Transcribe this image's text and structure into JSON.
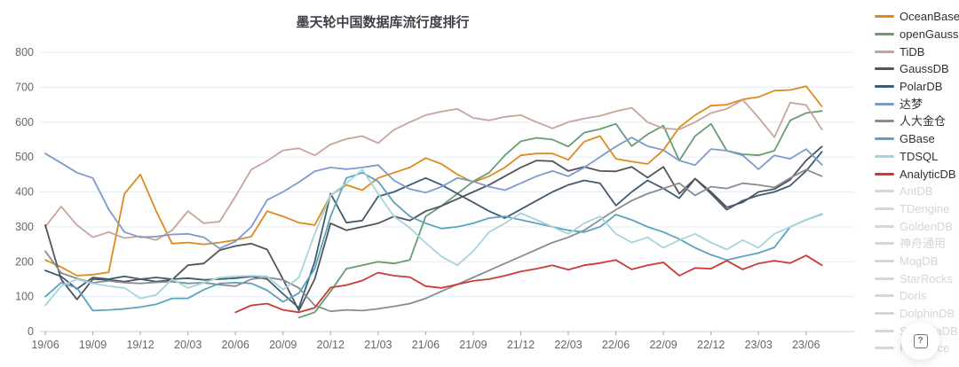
{
  "chart_data": {
    "type": "line",
    "title": "墨天轮中国数据库流行度排行",
    "xlabel": "",
    "ylabel": "",
    "ylim": [
      0,
      800
    ],
    "y_ticks": [
      0,
      100,
      200,
      300,
      400,
      500,
      600,
      700,
      800
    ],
    "grid": true,
    "legend_position": "right",
    "x": [
      "19/06",
      "19/07",
      "19/08",
      "19/09",
      "19/10",
      "19/11",
      "19/12",
      "20/01",
      "20/02",
      "20/03",
      "20/04",
      "20/05",
      "20/06",
      "20/07",
      "20/08",
      "20/09",
      "20/10",
      "20/11",
      "20/12",
      "21/01",
      "21/02",
      "21/03",
      "21/04",
      "21/05",
      "21/06",
      "21/07",
      "21/08",
      "21/09",
      "21/10",
      "21/11",
      "21/12",
      "22/01",
      "22/02",
      "22/03",
      "22/04",
      "22/05",
      "22/06",
      "22/07",
      "22/08",
      "22/09",
      "22/10",
      "22/11",
      "22/12",
      "23/01",
      "23/02",
      "23/03",
      "23/04",
      "23/05",
      "23/06",
      "23/07"
    ],
    "x_tick_labels": [
      "19/06",
      "19/09",
      "19/12",
      "20/03",
      "20/06",
      "20/09",
      "20/12",
      "21/03",
      "21/06",
      "21/09",
      "21/12",
      "22/03",
      "22/06",
      "22/09",
      "22/12",
      "23/03",
      "23/06"
    ],
    "series": [
      {
        "name": "OceanBase",
        "color": "#DE8A1D",
        "values": [
          205,
          185,
          160,
          163,
          170,
          395,
          450,
          345,
          252,
          255,
          250,
          255,
          262,
          272,
          345,
          330,
          312,
          305,
          390,
          420,
          405,
          440,
          455,
          470,
          497,
          480,
          450,
          428,
          445,
          470,
          505,
          510,
          510,
          492,
          544,
          560,
          495,
          487,
          480,
          520,
          585,
          620,
          647,
          650,
          665,
          672,
          690,
          692,
          703,
          645
        ]
      },
      {
        "name": "openGauss",
        "color": "#679D72",
        "values": [
          null,
          null,
          null,
          null,
          null,
          null,
          null,
          null,
          null,
          null,
          null,
          null,
          null,
          null,
          null,
          null,
          40,
          55,
          115,
          180,
          190,
          200,
          195,
          205,
          330,
          360,
          395,
          430,
          455,
          505,
          545,
          555,
          550,
          530,
          570,
          580,
          595,
          531,
          565,
          590,
          490,
          560,
          595,
          518,
          508,
          505,
          518,
          605,
          626,
          632
        ]
      },
      {
        "name": "TiDB",
        "color": "#C8A49A",
        "values": [
          300,
          358,
          305,
          270,
          285,
          268,
          273,
          262,
          290,
          345,
          310,
          315,
          387,
          464,
          489,
          519,
          525,
          505,
          536,
          552,
          560,
          540,
          578,
          600,
          620,
          630,
          638,
          612,
          605,
          615,
          620,
          600,
          582,
          600,
          610,
          618,
          631,
          641,
          600,
          582,
          579,
          600,
          626,
          638,
          664,
          613,
          557,
          656,
          649,
          579
        ]
      },
      {
        "name": "GaussDB",
        "color": "#53535B",
        "values": [
          305,
          150,
          92,
          150,
          148,
          143,
          150,
          143,
          148,
          190,
          195,
          233,
          245,
          252,
          235,
          150,
          60,
          150,
          310,
          290,
          300,
          310,
          330,
          318,
          345,
          360,
          380,
          400,
          420,
          445,
          470,
          490,
          488,
          460,
          472,
          460,
          459,
          472,
          441,
          472,
          395,
          438,
          400,
          356,
          370,
          400,
          408,
          435,
          490,
          530
        ]
      },
      {
        "name": "PolarDB",
        "color": "#405A70",
        "values": [
          175,
          158,
          122,
          155,
          150,
          158,
          150,
          155,
          150,
          153,
          148,
          150,
          153,
          158,
          150,
          108,
          68,
          200,
          395,
          312,
          318,
          387,
          400,
          420,
          440,
          420,
          395,
          370,
          345,
          325,
          350,
          375,
          400,
          420,
          433,
          425,
          361,
          400,
          433,
          410,
          382,
          438,
          395,
          349,
          375,
          390,
          400,
          418,
          460,
          515
        ]
      },
      {
        "name": "达梦",
        "color": "#7C9BCB",
        "values": [
          510,
          483,
          455,
          440,
          350,
          285,
          270,
          272,
          278,
          280,
          270,
          238,
          258,
          300,
          377,
          400,
          428,
          459,
          470,
          465,
          470,
          477,
          433,
          408,
          398,
          415,
          440,
          430,
          415,
          405,
          425,
          445,
          460,
          445,
          470,
          500,
          530,
          556,
          531,
          520,
          490,
          477,
          523,
          518,
          505,
          465,
          505,
          495,
          523,
          478
        ]
      },
      {
        "name": "人大金仓",
        "color": "#8A8C93",
        "values": [
          230,
          168,
          152,
          140,
          145,
          140,
          138,
          141,
          143,
          138,
          140,
          134,
          130,
          150,
          155,
          148,
          125,
          75,
          58,
          62,
          60,
          65,
          72,
          80,
          95,
          115,
          135,
          155,
          175,
          195,
          215,
          235,
          255,
          270,
          290,
          320,
          349,
          375,
          395,
          410,
          425,
          390,
          415,
          410,
          425,
          420,
          413,
          440,
          464,
          445
        ]
      },
      {
        "name": "GBase",
        "color": "#5AA4C0",
        "values": [
          100,
          140,
          125,
          60,
          62,
          65,
          70,
          78,
          95,
          95,
          120,
          138,
          140,
          138,
          118,
          85,
          110,
          180,
          330,
          440,
          455,
          430,
          370,
          330,
          310,
          295,
          300,
          310,
          325,
          330,
          320,
          310,
          300,
          290,
          285,
          300,
          335,
          320,
          300,
          285,
          265,
          240,
          220,
          205,
          215,
          225,
          241,
          300,
          320,
          336
        ]
      },
      {
        "name": "TDSQL",
        "color": "#A6D4DC",
        "values": [
          75,
          130,
          150,
          138,
          130,
          125,
          95,
          105,
          150,
          125,
          140,
          155,
          158,
          160,
          158,
          120,
          155,
          280,
          390,
          425,
          464,
          395,
          330,
          297,
          254,
          215,
          190,
          230,
          285,
          310,
          339,
          320,
          300,
          280,
          310,
          330,
          280,
          255,
          270,
          240,
          262,
          280,
          255,
          235,
          262,
          240,
          280,
          300,
          320,
          338
        ]
      },
      {
        "name": "AnalyticDB",
        "color": "#CB3B33",
        "values": [
          null,
          null,
          null,
          null,
          null,
          null,
          null,
          null,
          null,
          null,
          null,
          null,
          55,
          75,
          80,
          62,
          55,
          68,
          126,
          133,
          146,
          169,
          160,
          156,
          130,
          125,
          135,
          145,
          150,
          160,
          172,
          180,
          190,
          177,
          190,
          196,
          205,
          178,
          190,
          198,
          160,
          182,
          180,
          203,
          178,
          195,
          203,
          196,
          218,
          190
        ]
      }
    ],
    "inactive_legend": [
      "AntDB",
      "TDengine",
      "GoldenDB",
      "神舟通用",
      "MogDB",
      "StarRocks",
      "Doris",
      "DolphinDB",
      "SequoiaDB",
      "Kyligence"
    ],
    "inactive_color": "#D3D5DB"
  },
  "style_colors": {
    "grid_line": "#E4EDF6",
    "axis_line": "#CBD0D6",
    "tick_mark": "#9AA0A6",
    "axis_label": "#65666B",
    "title_text": "#3F4147"
  },
  "help_button": {
    "glyph": "?"
  }
}
